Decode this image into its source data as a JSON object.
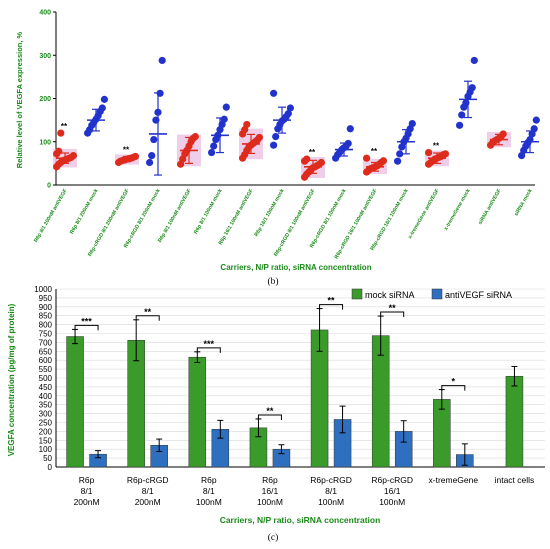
{
  "chart_data": [
    {
      "type": "scatter",
      "panel_label": "(b)",
      "title": "",
      "ylabel": "Relative level of VEGFA expression, %",
      "xlabel": "Carriers, N/P ratio, siRNA concentration",
      "ylim": [
        0,
        400
      ],
      "yticks": [
        0,
        100,
        200,
        300,
        400
      ],
      "grid": false,
      "point_colors": {
        "antiVEGF": "#dd2b1c",
        "mock": "#2233cc"
      },
      "band_color": "#ecc6e6",
      "groups": [
        {
          "label": "R6p 8/1 200nM antiVEGF",
          "type": "antiVEGF",
          "mean": 62,
          "sd": 12,
          "sig": "**",
          "points": [
            42,
            48,
            52,
            56,
            58,
            60,
            62,
            64,
            68,
            72,
            78,
            120
          ]
        },
        {
          "label": "R6p 8/1 200nM mock",
          "type": "mock",
          "mean": 150,
          "sd": 25,
          "sig": "",
          "points": [
            120,
            128,
            138,
            145,
            152,
            160,
            170,
            178,
            198
          ]
        },
        {
          "label": "R6p-cRGD 8/1 200nM antiVEGF",
          "type": "antiVEGF",
          "mean": 60,
          "sd": 6,
          "sig": "**",
          "points": [
            52,
            55,
            57,
            58,
            60,
            61,
            62,
            64,
            66
          ]
        },
        {
          "label": "R6p-cRGD 8/1 200nM mock",
          "type": "mock",
          "mean": 118,
          "sd": 95,
          "sig": "",
          "points": [
            52,
            68,
            105,
            150,
            168,
            212,
            288
          ]
        },
        {
          "label": "R6p 8/1 100nM antiVEGF",
          "type": "antiVEGF",
          "mean": 80,
          "sd": 30,
          "sig": "",
          "points": [
            48,
            60,
            72,
            80,
            90,
            100,
            108,
            112
          ]
        },
        {
          "label": "R6p 8/1 100nM mock",
          "type": "mock",
          "mean": 115,
          "sd": 40,
          "sig": "",
          "points": [
            75,
            90,
            105,
            115,
            128,
            140,
            152,
            180
          ]
        },
        {
          "label": "R6p 16/1 100nM antiVEGF",
          "type": "antiVEGF",
          "mean": 95,
          "sd": 22,
          "sig": "",
          "points": [
            62,
            70,
            80,
            88,
            92,
            96,
            100,
            104,
            110,
            118,
            128,
            140
          ]
        },
        {
          "label": "R6p 16/1 100nM mock",
          "type": "mock",
          "mean": 150,
          "sd": 30,
          "sig": "",
          "points": [
            92,
            112,
            130,
            140,
            148,
            152,
            158,
            165,
            178,
            212
          ]
        },
        {
          "label": "R6p-cRGD 8/1 100nM antiVEGF",
          "type": "antiVEGF",
          "mean": 42,
          "sd": 15,
          "sig": "**",
          "points": [
            18,
            25,
            30,
            35,
            40,
            42,
            45,
            48,
            52,
            55,
            60
          ]
        },
        {
          "label": "R6p-cRGD 8/1 100nM mock",
          "type": "mock",
          "mean": 82,
          "sd": 15,
          "sig": "",
          "points": [
            62,
            70,
            76,
            82,
            86,
            90,
            96,
            130
          ]
        },
        {
          "label": "R6p-cRGD 16/1 100nM antiVEGF",
          "type": "antiVEGF",
          "mean": 42,
          "sd": 10,
          "sig": "**",
          "points": [
            30,
            34,
            38,
            40,
            42,
            44,
            48,
            52,
            56,
            62
          ]
        },
        {
          "label": "R6p-cRGD 16/1 100nM mock",
          "type": "mock",
          "mean": 100,
          "sd": 28,
          "sig": "",
          "points": [
            55,
            72,
            88,
            100,
            108,
            118,
            130,
            142
          ]
        },
        {
          "label": "x-tremeGene antiVEGF",
          "type": "antiVEGF",
          "mean": 62,
          "sd": 12,
          "sig": "**",
          "points": [
            48,
            52,
            56,
            60,
            62,
            64,
            66,
            70,
            72,
            75
          ]
        },
        {
          "label": "x-tremeGene mock",
          "type": "mock",
          "mean": 198,
          "sd": 42,
          "sig": "",
          "points": [
            138,
            162,
            180,
            190,
            205,
            215,
            225,
            288
          ]
        },
        {
          "label": "siRNA antiVEGF",
          "type": "antiVEGF",
          "mean": 105,
          "sd": 12,
          "sig": "",
          "points": [
            92,
            98,
            102,
            105,
            108,
            112,
            118
          ]
        },
        {
          "label": "siRNA mock",
          "type": "mock",
          "mean": 100,
          "sd": 25,
          "sig": "",
          "points": [
            68,
            80,
            90,
            98,
            105,
            118,
            130,
            150
          ]
        }
      ]
    },
    {
      "type": "bar",
      "panel_label": "(c)",
      "title": "",
      "ylabel": "VEGFA concentration (pg/mg of protein)",
      "xlabel": "Carriers, N/P ratio, siRNA concentration",
      "ylim": [
        0,
        1000
      ],
      "yticks": [
        0,
        50,
        100,
        150,
        200,
        250,
        300,
        350,
        400,
        450,
        500,
        550,
        600,
        650,
        700,
        750,
        800,
        850,
        900,
        950,
        1000
      ],
      "grid": true,
      "legend_position": "top-right",
      "categories": [
        [
          "R6p",
          "8/1",
          "200nM"
        ],
        [
          "R6p-cRGD",
          "8/1",
          "200nM"
        ],
        [
          "R6p",
          "8/1",
          "100nM"
        ],
        [
          "R6p",
          "16/1",
          "100nM"
        ],
        [
          "R6p-cRGD",
          "8/1",
          "100nM"
        ],
        [
          "R6p-cRGD",
          "16/1",
          "100nM"
        ],
        [
          "x-tremeGene"
        ],
        [
          "intact cells"
        ]
      ],
      "series": [
        {
          "name": "mock siRNA",
          "color": "#3a9a2a",
          "values": [
            733,
            712,
            617,
            220,
            770,
            738,
            380,
            510
          ],
          "errors": [
            40,
            115,
            30,
            50,
            120,
            110,
            55,
            55
          ]
        },
        {
          "name": "antiVEGF siRNA",
          "color": "#2e6fbf",
          "values": [
            72,
            122,
            212,
            100,
            267,
            200,
            70,
            null
          ],
          "errors": [
            20,
            35,
            50,
            25,
            75,
            60,
            60,
            null
          ]
        }
      ],
      "significance": [
        "***",
        "**",
        "***",
        "**",
        "**",
        "**",
        "*",
        ""
      ]
    }
  ]
}
